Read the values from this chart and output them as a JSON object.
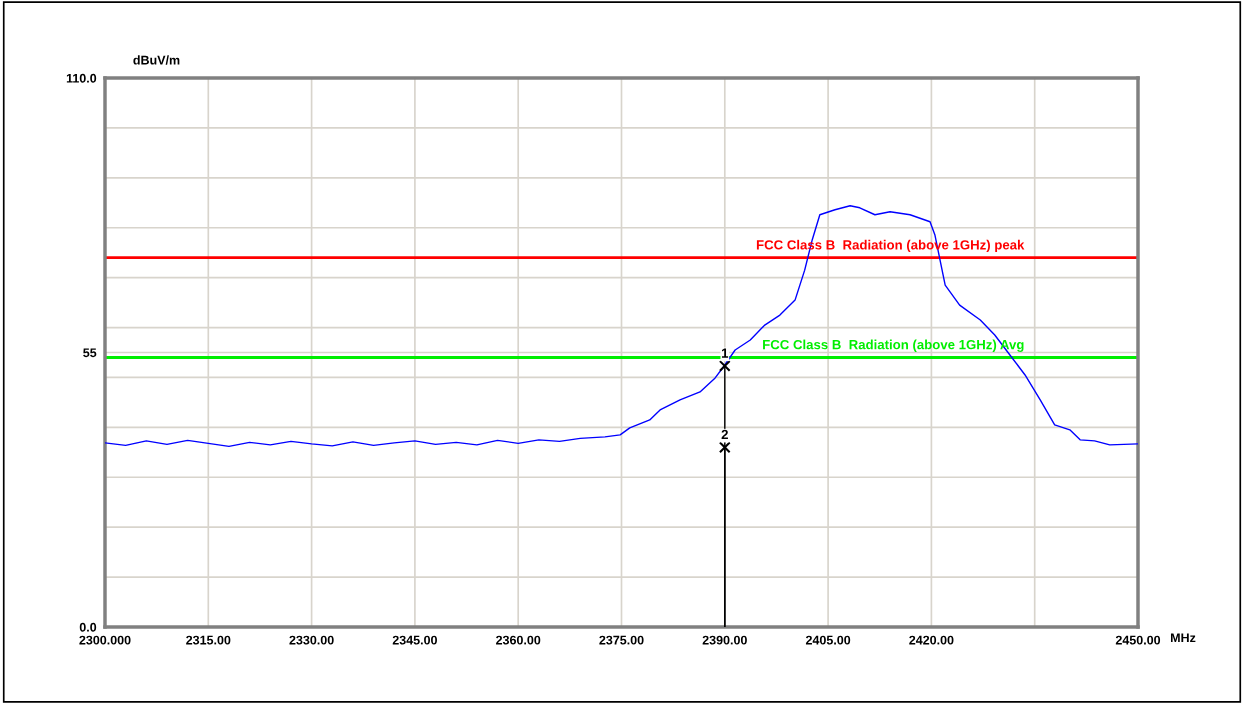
{
  "chart_data": {
    "type": "line",
    "xlabel": "MHz",
    "ylabel": "dBuV/m",
    "xlim": [
      2300,
      2450
    ],
    "ylim": [
      0,
      110
    ],
    "xticks": [
      {
        "value": 2300,
        "label": "2300.000"
      },
      {
        "value": 2315,
        "label": "2315.00"
      },
      {
        "value": 2330,
        "label": "2330.00"
      },
      {
        "value": 2345,
        "label": "2345.00"
      },
      {
        "value": 2360,
        "label": "2360.00"
      },
      {
        "value": 2375,
        "label": "2375.00"
      },
      {
        "value": 2390,
        "label": "2390.00"
      },
      {
        "value": 2405,
        "label": "2405.00"
      },
      {
        "value": 2420,
        "label": "2420.00"
      },
      {
        "value": 2435,
        "label": null
      },
      {
        "value": 2450,
        "label": "2450.00"
      }
    ],
    "yticks": [
      {
        "value": 0,
        "label": "0.0"
      },
      {
        "value": 10,
        "label": null
      },
      {
        "value": 20,
        "label": null
      },
      {
        "value": 30,
        "label": null
      },
      {
        "value": 40,
        "label": null
      },
      {
        "value": 50,
        "label": null
      },
      55,
      {
        "value": 60,
        "label": null
      },
      {
        "value": 70,
        "label": null
      },
      {
        "value": 80,
        "label": null
      },
      {
        "value": 90,
        "label": null
      },
      {
        "value": 100,
        "label": null
      },
      {
        "value": 110,
        "label": "110.0"
      }
    ],
    "grid": true,
    "legend": false,
    "series": [
      {
        "color": "#0000ff",
        "x": [
          2300,
          2303,
          2306,
          2309,
          2312,
          2315,
          2318,
          2321,
          2324,
          2327,
          2330,
          2333,
          2336,
          2339,
          2342,
          2345,
          2348,
          2351,
          2354,
          2357,
          2360,
          2363,
          2366,
          2369,
          2372.6,
          2374.8,
          2376.2,
          2379.1,
          2380.6,
          2383.5,
          2386.4,
          2388.6,
          2389.9,
          2391.5,
          2393.7,
          2395.8,
          2398,
          2400.2,
          2401.6,
          2402.7,
          2403.8,
          2406,
          2408.2,
          2409.6,
          2411.8,
          2414,
          2416.9,
          2419.8,
          2420.5,
          2422,
          2424.1,
          2427.1,
          2429.2,
          2431.4,
          2433.6,
          2435.8,
          2437.9,
          2440.1,
          2441.6,
          2443.7,
          2445.9,
          2450
        ],
        "values": [
          36.9,
          36.4,
          37.3,
          36.6,
          37.4,
          36.8,
          36.2,
          37.0,
          36.5,
          37.2,
          36.7,
          36.3,
          37.1,
          36.4,
          36.9,
          37.3,
          36.6,
          37.0,
          36.5,
          37.4,
          36.8,
          37.5,
          37.2,
          37.8,
          38.1,
          38.5,
          39.9,
          41.5,
          43.5,
          45.5,
          47.1,
          49.9,
          52.3,
          55.5,
          57.5,
          60.5,
          62.5,
          65.5,
          71.5,
          77.6,
          82.6,
          83.6,
          84.4,
          84.0,
          82.6,
          83.2,
          82.6,
          81.2,
          78.6,
          68.5,
          64.5,
          61.5,
          58.5,
          54.5,
          50.5,
          45.5,
          40.5,
          39.5,
          37.5,
          37.3,
          36.5,
          36.7
        ]
      },
      {
        "type": "lollipop",
        "color": "#000000",
        "marker": "cross",
        "x": [
          2390,
          2390
        ],
        "values": [
          52.3,
          36
        ]
      }
    ],
    "annotations": [
      {
        "text": "1",
        "x": 2390,
        "y": 52.3
      },
      {
        "text": "2",
        "x": 2390,
        "y": 36
      }
    ],
    "ref_lines": [
      {
        "axis": "y",
        "value": 74,
        "label": "FCC Class B  Radiation (above 1GHz) peak",
        "color": "#ff0000"
      },
      {
        "axis": "y",
        "value": 54,
        "label": "FCC Class B  Radiation (above 1GHz) Avg",
        "color": "#00ee00"
      }
    ]
  }
}
